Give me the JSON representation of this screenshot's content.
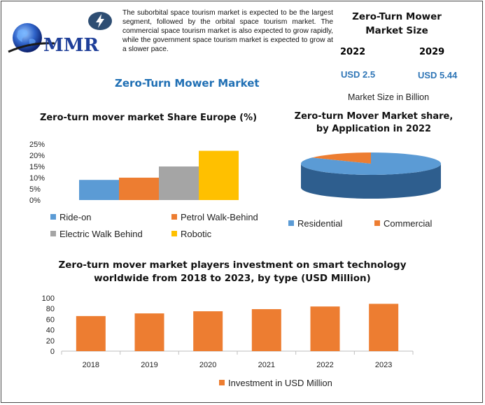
{
  "logo": {
    "text": "MMR"
  },
  "intro_text": "The suborbital space tourism market is expected to be the largest segment, followed by the orbital space tourism market. The commercial space tourism market is also expected to grow rapidly, while the government space tourism market is expected to grow at a slower pace.",
  "main_title": "Zero-Turn Mower Market",
  "market_size": {
    "title": "Zero-Turn Mower Market Size",
    "years": [
      "2022",
      "2029"
    ],
    "values": [
      "USD 2.5",
      "USD 5.44"
    ],
    "caption": "Market Size in Billion"
  },
  "colors": {
    "blue": "#5B9BD5",
    "orange": "#ED7D31",
    "gray": "#A5A5A5",
    "yellow": "#FFC000",
    "title_blue": "#1F6FB4",
    "logo_blue": "#1F3F99"
  },
  "chart_data": [
    {
      "type": "bar",
      "title": "Zero-turn mover market Share Europe (%)",
      "categories": [
        "Ride-on",
        "Petrol Walk-Behind",
        "Electric Walk Behind",
        "Robotic"
      ],
      "values": [
        9,
        10,
        15,
        22
      ],
      "y_ticks": [
        "0%",
        "5%",
        "10%",
        "15%",
        "20%",
        "25%"
      ],
      "ylim": [
        0,
        25
      ],
      "legend_position": "bottom"
    },
    {
      "type": "pie",
      "title": "Zero-turn Mover Market share, by Application in 2022",
      "labels": [
        "Residential",
        "Commercial"
      ],
      "values": [
        84,
        16
      ],
      "legend_position": "bottom"
    },
    {
      "type": "bar",
      "title": "Zero-turn mover market players investment on smart technology worldwide from 2018 to 2023, by type (USD Million)",
      "categories": [
        "2018",
        "2019",
        "2020",
        "2021",
        "2022",
        "2023"
      ],
      "series": [
        {
          "name": "Investment in USD Million",
          "values": [
            66,
            71,
            75,
            79,
            84,
            89
          ]
        }
      ],
      "y_ticks": [
        "0",
        "20",
        "40",
        "60",
        "80",
        "100"
      ],
      "ylim": [
        0,
        100
      ],
      "legend_position": "bottom"
    }
  ]
}
